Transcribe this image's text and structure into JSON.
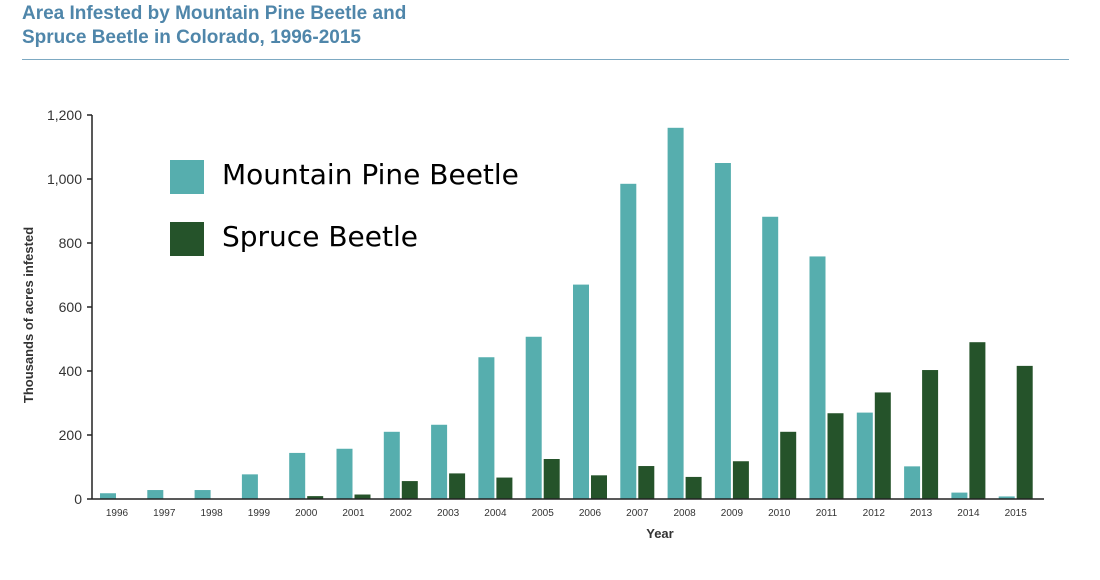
{
  "header": {
    "title": "Area Infested by Mountain Pine Beetle and\nSpruce Beetle in Colorado, 1996-2015"
  },
  "legend": {
    "items": [
      {
        "label": "Mountain Pine Beetle",
        "color": "#56aeae"
      },
      {
        "label": "Spruce Beetle",
        "color": "#25532a"
      }
    ]
  },
  "chart_data": {
    "type": "bar",
    "title": "Area Infested by Mountain Pine Beetle and Spruce Beetle in Colorado, 1996-2015",
    "xlabel": "Year",
    "ylabel": "Thousands of acres infested",
    "ylim": [
      0,
      1200
    ],
    "yticks": [
      0,
      200,
      400,
      600,
      800,
      1000,
      1200
    ],
    "ytick_labels": [
      "0",
      "200",
      "400",
      "600",
      "800",
      "1,000",
      "1,200"
    ],
    "categories": [
      "1996",
      "1997",
      "1998",
      "1999",
      "2000",
      "2001",
      "2002",
      "2003",
      "2004",
      "2005",
      "2006",
      "2007",
      "2008",
      "2009",
      "2010",
      "2011",
      "2012",
      "2013",
      "2014",
      "2015"
    ],
    "grid": false,
    "legend_position": "top-left",
    "series": [
      {
        "name": "Mountain Pine Beetle",
        "color": "#56aeae",
        "values": [
          18,
          28,
          28,
          77,
          144,
          157,
          210,
          232,
          443,
          507,
          670,
          985,
          1160,
          1050,
          882,
          758,
          270,
          102,
          20,
          8
        ]
      },
      {
        "name": "Spruce Beetle",
        "color": "#25532a",
        "values": [
          0,
          0,
          0,
          0,
          9,
          14,
          56,
          80,
          67,
          125,
          74,
          103,
          69,
          118,
          210,
          268,
          333,
          403,
          490,
          416
        ]
      }
    ]
  }
}
